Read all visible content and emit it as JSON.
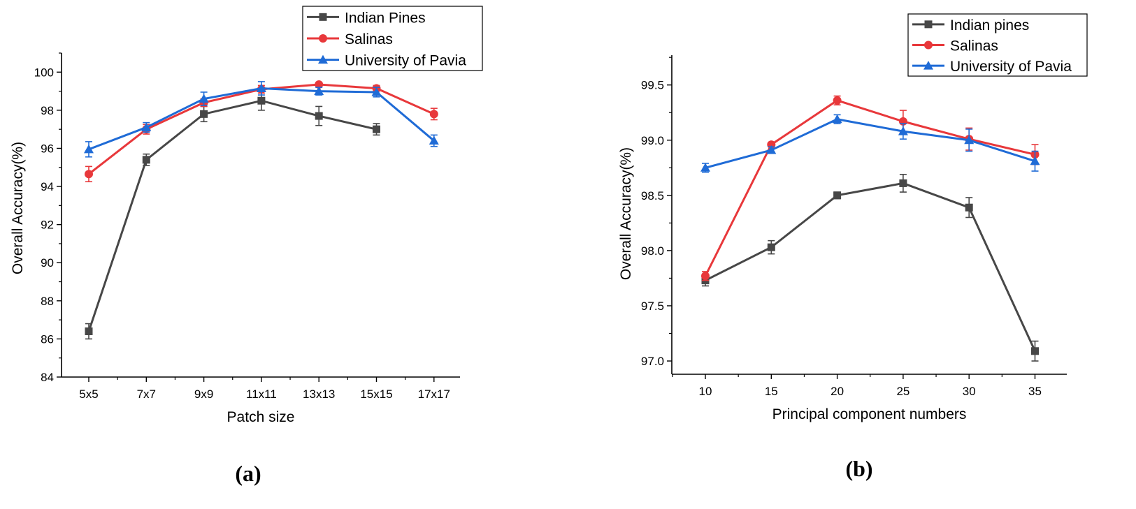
{
  "chart_data": [
    {
      "type": "line",
      "panel_label": "(a)",
      "xlabel": "Patch size",
      "ylabel": "Overall Accuracy(%)",
      "categories": [
        "5x5",
        "7x7",
        "9x9",
        "11x11",
        "13x13",
        "15x15",
        "17x17"
      ],
      "ylim": [
        84,
        101
      ],
      "yticks": [
        84,
        86,
        88,
        90,
        92,
        94,
        96,
        98,
        100
      ],
      "ytick_labels": [
        "84",
        "86",
        "88",
        "90",
        "92",
        "94",
        "96",
        "98",
        "100"
      ],
      "legend_position": "top-right",
      "series": [
        {
          "name": "Indian Pines",
          "color": "#474747",
          "marker": "square",
          "values": [
            86.4,
            95.4,
            97.8,
            98.5,
            97.7,
            97.0,
            null
          ],
          "errors": [
            0.4,
            0.3,
            0.4,
            0.5,
            0.5,
            0.3,
            null
          ]
        },
        {
          "name": "Salinas",
          "color": "#e8383b",
          "marker": "circle",
          "values": [
            94.65,
            97.0,
            98.4,
            99.1,
            99.35,
            99.15,
            97.8
          ],
          "errors": [
            0.4,
            0.25,
            0.2,
            0.2,
            0.1,
            0.15,
            0.3
          ]
        },
        {
          "name": "University of Pavia",
          "color": "#1f6bd6",
          "marker": "triangle",
          "values": [
            95.95,
            97.1,
            98.6,
            99.15,
            99.0,
            98.95,
            96.4
          ],
          "errors": [
            0.4,
            0.25,
            0.35,
            0.35,
            0.2,
            0.25,
            0.3
          ]
        }
      ]
    },
    {
      "type": "line",
      "panel_label": "(b)",
      "xlabel": "Principal component numbers",
      "ylabel": "Overall Accuracy(%)",
      "categories": [
        "10",
        "15",
        "20",
        "25",
        "30",
        "35"
      ],
      "ylim": [
        96.88,
        99.77
      ],
      "yticks": [
        97.0,
        97.5,
        98.0,
        98.5,
        99.0,
        99.5
      ],
      "ytick_labels": [
        "97.0",
        "97.5",
        "98.0",
        "98.5",
        "99.0",
        "99.5"
      ],
      "legend_position": "top-right",
      "series": [
        {
          "name": "Indian pines",
          "color": "#474747",
          "marker": "square",
          "values": [
            97.73,
            98.03,
            98.5,
            98.61,
            98.39,
            97.09
          ],
          "errors": [
            0.05,
            0.06,
            0.03,
            0.08,
            0.09,
            0.09
          ]
        },
        {
          "name": "Salinas",
          "color": "#e8383b",
          "marker": "circle",
          "values": [
            97.77,
            98.96,
            99.36,
            99.17,
            99.01,
            98.87
          ],
          "errors": [
            0.04,
            0.02,
            0.04,
            0.1,
            0.1,
            0.09
          ]
        },
        {
          "name": "University of Pavia",
          "color": "#1f6bd6",
          "marker": "triangle",
          "values": [
            98.75,
            98.91,
            99.19,
            99.08,
            99.0,
            98.81
          ],
          "errors": [
            0.04,
            0.03,
            0.04,
            0.07,
            0.1,
            0.09
          ]
        }
      ]
    }
  ]
}
